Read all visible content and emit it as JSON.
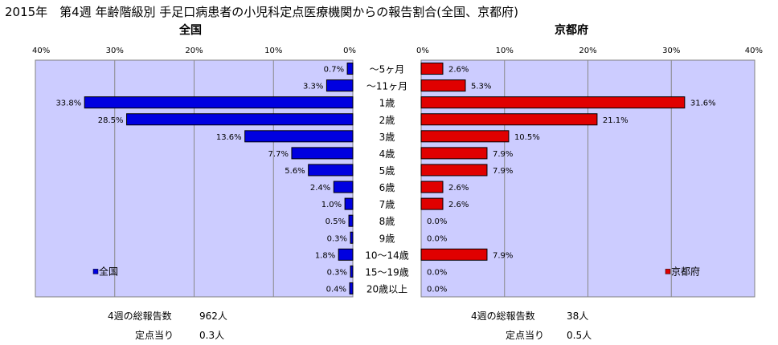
{
  "title": "2015年　第4週 年齢階級別 手足口病患者の小児科定点医療機関からの報告割合(全国、京都府)",
  "colors": {
    "national": "#0000e0",
    "kyoto": "#e00000",
    "plot_bg": "#ccccff",
    "grid": "#888888"
  },
  "chart_data": [
    {
      "type": "bar",
      "orientation": "horizontal",
      "direction": "right-to-left",
      "title": "全国",
      "xlim": [
        0,
        40
      ],
      "ticks": [
        "40%",
        "30%",
        "20%",
        "10%",
        "0%"
      ],
      "tick_values": [
        40,
        30,
        20,
        10,
        0
      ],
      "grid": true,
      "legend": "bottom-left",
      "categories": [
        "～5ヶ月",
        "～11ヶ月",
        "1歳",
        "2歳",
        "3歳",
        "4歳",
        "5歳",
        "6歳",
        "7歳",
        "8歳",
        "9歳",
        "10～14歳",
        "15～19歳",
        "20歳以上"
      ],
      "series": [
        {
          "name": "全国",
          "values": [
            0.7,
            3.3,
            33.8,
            28.5,
            13.6,
            7.7,
            5.6,
            2.4,
            1.0,
            0.5,
            0.3,
            1.8,
            0.3,
            0.4
          ],
          "labels": [
            "0.7%",
            "3.3%",
            "33.8%",
            "28.5%",
            "13.6%",
            "7.7%",
            "5.6%",
            "2.4%",
            "1.0%",
            "0.5%",
            "0.3%",
            "1.8%",
            "0.3%",
            "0.4%"
          ]
        }
      ]
    },
    {
      "type": "bar",
      "orientation": "horizontal",
      "direction": "left-to-right",
      "title": "京都府",
      "xlim": [
        0,
        40
      ],
      "ticks": [
        "0%",
        "10%",
        "20%",
        "30%",
        "40%"
      ],
      "tick_values": [
        0,
        10,
        20,
        30,
        40
      ],
      "grid": true,
      "legend": "bottom-right",
      "categories": [
        "～5ヶ月",
        "～11ヶ月",
        "1歳",
        "2歳",
        "3歳",
        "4歳",
        "5歳",
        "6歳",
        "7歳",
        "8歳",
        "9歳",
        "10～14歳",
        "15～19歳",
        "20歳以上"
      ],
      "series": [
        {
          "name": "京都府",
          "values": [
            2.6,
            5.3,
            31.6,
            21.1,
            10.5,
            7.9,
            7.9,
            2.6,
            2.6,
            0.0,
            0.0,
            7.9,
            0.0,
            0.0
          ],
          "labels": [
            "2.6%",
            "5.3%",
            "31.6%",
            "21.1%",
            "10.5%",
            "7.9%",
            "7.9%",
            "2.6%",
            "2.6%",
            "0.0%",
            "0.0%",
            "7.9%",
            "0.0%",
            "0.0%"
          ]
        }
      ]
    }
  ],
  "footer": {
    "national": {
      "total_label": "4週の総報告数",
      "total_value": "962人",
      "per_label": "定点当り",
      "per_value": "0.3人"
    },
    "kyoto": {
      "total_label": "4週の総報告数",
      "total_value": "38人",
      "per_label": "定点当り",
      "per_value": "0.5人"
    }
  }
}
